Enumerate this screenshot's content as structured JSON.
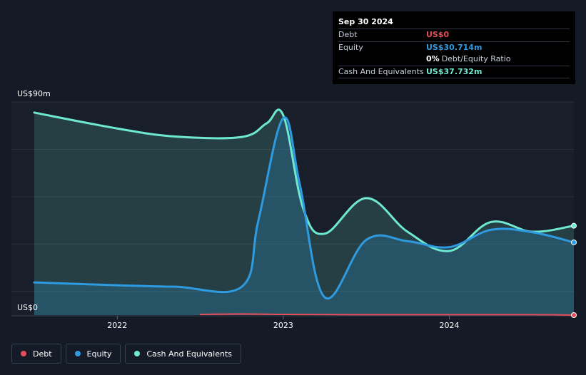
{
  "tooltip": {
    "date": "Sep 30 2024",
    "debt_label": "Debt",
    "debt_value": "US$0",
    "equity_label": "Equity",
    "equity_value": "US$30.714m",
    "ratio_pct": "0%",
    "ratio_label": "Debt/Equity Ratio",
    "cash_label": "Cash And Equivalents",
    "cash_value": "US$37.732m"
  },
  "legend": {
    "debt": "Debt",
    "equity": "Equity",
    "cash": "Cash And Equivalents"
  },
  "colors": {
    "debt": "#e64d5a",
    "equity": "#2e9be0",
    "cash": "#6fe8d0",
    "background": "#151b26"
  },
  "chart_data": {
    "type": "area",
    "title": "",
    "xlabel": "",
    "ylabel": "",
    "y_top_label": "US$90m",
    "y_bottom_label": "US$0",
    "ylim": [
      0,
      90
    ],
    "xlim": [
      2021.5,
      2024.75
    ],
    "x_ticks": [
      {
        "value": 2022,
        "label": "2022"
      },
      {
        "value": 2023,
        "label": "2023"
      },
      {
        "value": 2024,
        "label": "2024"
      }
    ],
    "series": [
      {
        "name": "Cash And Equivalents",
        "key": "cash",
        "points": [
          [
            2021.5,
            85.5
          ],
          [
            2022.0,
            78.8
          ],
          [
            2022.35,
            75.4
          ],
          [
            2022.75,
            75.2
          ],
          [
            2022.9,
            81.0
          ],
          [
            2023.0,
            84.3
          ],
          [
            2023.12,
            45.0
          ],
          [
            2023.25,
            34.4
          ],
          [
            2023.5,
            49.4
          ],
          [
            2023.75,
            35.1
          ],
          [
            2024.0,
            27.1
          ],
          [
            2024.25,
            39.3
          ],
          [
            2024.5,
            35.2
          ],
          [
            2024.75,
            37.732
          ]
        ]
      },
      {
        "name": "Equity",
        "key": "equity",
        "points": [
          [
            2021.5,
            13.8
          ],
          [
            2022.0,
            12.6
          ],
          [
            2022.35,
            12.0
          ],
          [
            2022.75,
            12.0
          ],
          [
            2022.85,
            40.0
          ],
          [
            2023.0,
            83.2
          ],
          [
            2023.1,
            55.0
          ],
          [
            2023.25,
            7.5
          ],
          [
            2023.5,
            31.8
          ],
          [
            2023.75,
            31.2
          ],
          [
            2024.0,
            28.7
          ],
          [
            2024.25,
            36.0
          ],
          [
            2024.5,
            35.0
          ],
          [
            2024.75,
            30.714
          ]
        ]
      },
      {
        "name": "Debt",
        "key": "debt",
        "points": [
          [
            2022.5,
            0.3
          ],
          [
            2022.75,
            0.5
          ],
          [
            2023.0,
            0.3
          ],
          [
            2023.5,
            0.2
          ],
          [
            2024.0,
            0.2
          ],
          [
            2024.5,
            0.2
          ],
          [
            2024.75,
            0.0
          ]
        ]
      }
    ]
  }
}
